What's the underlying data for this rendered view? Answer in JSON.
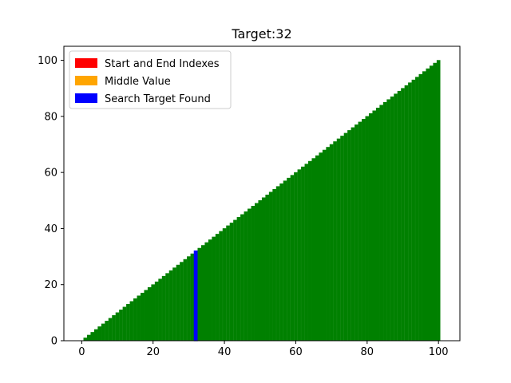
{
  "chart_data": {
    "type": "bar",
    "title": "Target:32",
    "xlabel": "",
    "ylabel": "",
    "x_range": [
      1,
      100
    ],
    "values_rule": "value equals index (1..100)",
    "xlim": [
      -5,
      106
    ],
    "ylim": [
      0,
      105
    ],
    "xticks": [
      0,
      20,
      40,
      60,
      80,
      100
    ],
    "yticks": [
      0,
      20,
      40,
      60,
      80,
      100
    ],
    "grid": false,
    "bar_color": "#008000",
    "highlight": {
      "index": 32,
      "value": 32,
      "color": "#0000ff"
    },
    "legend": {
      "placement": "top-left",
      "entries": [
        {
          "label": "Start and End Indexes",
          "color": "#ff0000"
        },
        {
          "label": "Middle Value",
          "color": "#ffa500"
        },
        {
          "label": "Search Target Found",
          "color": "#0000ff"
        }
      ]
    }
  }
}
